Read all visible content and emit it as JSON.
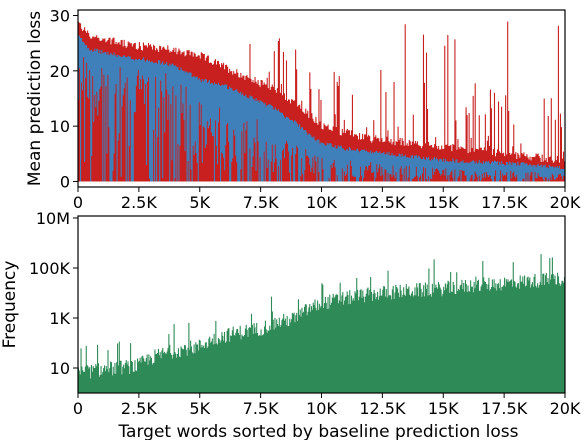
{
  "colors": {
    "red": "#c8201f",
    "blue": "#3f7fba",
    "green": "#2e8b57",
    "axis": "#000000"
  },
  "chart_data": [
    {
      "type": "area",
      "xlabel": "",
      "ylabel": "Mean prediction loss",
      "xlim": [
        0,
        20000
      ],
      "ylim": [
        -1,
        31
      ],
      "xticks": [
        0,
        2500,
        5000,
        7500,
        10000,
        12500,
        15000,
        17500,
        20000
      ],
      "xtick_labels": [
        "0",
        "2.5K",
        "5K",
        "7.5K",
        "10K",
        "12.5K",
        "15K",
        "17.5K",
        "20K"
      ],
      "yticks": [
        0,
        10,
        20,
        30
      ],
      "ytick_labels": [
        "0",
        "10",
        "20",
        "30"
      ],
      "grid": false,
      "series": [
        {
          "color": "#c8201f",
          "x": [
            0,
            500,
            1000,
            2000,
            3000,
            4000,
            5000,
            6000,
            7000,
            8000,
            9000,
            10000,
            11000,
            12000,
            13000,
            14000,
            15000,
            16000,
            17000,
            18000,
            19000,
            20000
          ],
          "values": [
            28,
            25.5,
            25,
            24,
            23.5,
            23,
            22,
            20,
            18,
            16,
            13,
            9.5,
            8,
            7,
            6.5,
            6,
            5.5,
            5,
            4.5,
            4,
            3.5,
            3
          ]
        },
        {
          "color": "#3f7fba",
          "x": [
            0,
            500,
            1000,
            2000,
            3000,
            4000,
            5000,
            6000,
            7000,
            8000,
            8500,
            9000,
            9500,
            10000,
            11000,
            12000,
            13000,
            14000,
            15000,
            16000,
            17000,
            18000,
            19000,
            20000
          ],
          "values": [
            26,
            23.5,
            23,
            22,
            21.5,
            20.5,
            18,
            17,
            15,
            13,
            11.5,
            10,
            8,
            6.5,
            5.5,
            5,
            4.5,
            4,
            3.5,
            3.2,
            3,
            2.8,
            2.5,
            2
          ]
        }
      ]
    },
    {
      "type": "bar",
      "xlabel": "Target words sorted by baseline prediction loss",
      "ylabel": "Frequency",
      "yscale": "log",
      "xlim": [
        0,
        20000
      ],
      "ylim": [
        1,
        12000000
      ],
      "xticks": [
        0,
        2500,
        5000,
        7500,
        10000,
        12500,
        15000,
        17500,
        20000
      ],
      "xtick_labels": [
        "0",
        "2.5K",
        "5K",
        "7.5K",
        "10K",
        "12.5K",
        "15K",
        "17.5K",
        "20K"
      ],
      "yticks": [
        10,
        1000,
        100000,
        10000000
      ],
      "ytick_labels": [
        "10",
        "1K",
        "100K",
        "10M"
      ],
      "grid": false,
      "series": [
        {
          "color": "#2e8b57",
          "x": [
            0,
            2500,
            5000,
            7500,
            9000,
            10000,
            12500,
            15000,
            17500,
            20000
          ],
          "values": [
            5,
            10,
            60,
            300,
            800,
            3000,
            8000,
            12000,
            20000,
            30000
          ]
        }
      ]
    }
  ]
}
